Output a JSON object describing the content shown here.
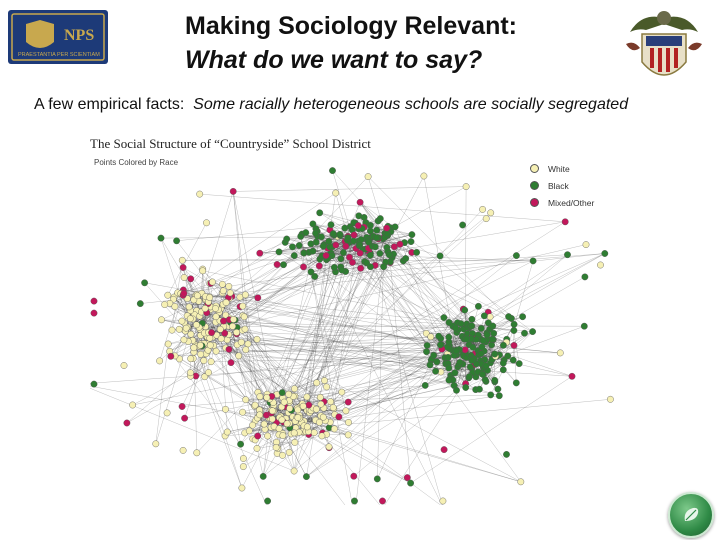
{
  "header": {
    "title_line1": "Making Sociology Relevant:",
    "title_line2": "What do we want to say?",
    "nps_logo_text": "NPS",
    "nps_logo_motto": "PRAESTANTIA PER SCIENTIAM"
  },
  "subtitle": {
    "lead": "A few empirical facts:",
    "emphasis": "Some racially heterogeneous schools are socially segregated"
  },
  "figure": {
    "title": "The Social Structure of “Countryside” School District",
    "subtitle": "Points Colored by Race",
    "legend": [
      {
        "label": "White",
        "color": "#f6f0b4"
      },
      {
        "label": "Black",
        "color": "#2f7d32"
      },
      {
        "label": "Mixed/Other",
        "color": "#c2185b"
      }
    ]
  },
  "colors": {
    "white_node": "#f6f0b4",
    "black_node": "#2f7d32",
    "other_node": "#c2185b",
    "edge": "#333333"
  },
  "icons": {
    "logo": "nps-shield-icon",
    "crest": "eagle-crest-icon",
    "nav": "leaf-nav-icon"
  }
}
